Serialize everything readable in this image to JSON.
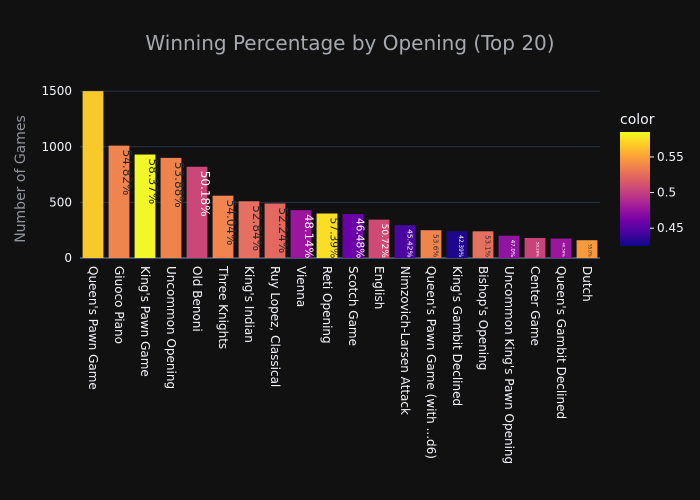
{
  "chart_data": {
    "type": "bar",
    "title": "Winning Percentage by Opening (Top 20)",
    "ylabel": "Number of Games",
    "xlabel": "",
    "ylim": [
      0,
      1600
    ],
    "yticks": [
      0,
      500,
      1000,
      1500
    ],
    "grid": true,
    "categories": [
      "Queen's Pawn Game",
      "Giuoco Piano",
      "King's Pawn Game",
      "Uncommon Opening",
      "Old Benoni",
      "Three Knights",
      "King's Indian",
      "Ruy Lopez, Classical",
      "Vienna",
      "Reti Opening",
      "Scotch Game",
      "English",
      "Nimzovich-Larsen Attack",
      "Queen's Pawn Game (with ...d6)",
      "King's Gambit Declined",
      "Bishop's Opening",
      "Uncommon King's Pawn Opening",
      "Center Game",
      "Queen's Gambit Declined",
      "Dutch"
    ],
    "values": [
      1500,
      1010,
      930,
      900,
      820,
      560,
      510,
      490,
      430,
      400,
      395,
      345,
      295,
      250,
      240,
      240,
      200,
      180,
      175,
      160
    ],
    "bar_labels": [
      "",
      "54.82%",
      "58.37%",
      "53.88%",
      "50.18%",
      "54.04%",
      "52.84%",
      "52.24%",
      "48.14%",
      "57.39%",
      "46.48%",
      "50.72%",
      "45.42%",
      "53.6%",
      "42.39%",
      "53.1%",
      "47.0%",
      "50.28%",
      "46.58%",
      "55.0%"
    ],
    "bar_colors": [
      "#f8c92a",
      "#f0844e",
      "#f2f72a",
      "#ee844c",
      "#cb4778",
      "#f28450",
      "#e57061",
      "#e3685f",
      "#9c169d",
      "#fadd25",
      "#6b00a8",
      "#cf4b73",
      "#4b05a0",
      "#f0844e",
      "#1e068f",
      "#e4715e",
      "#9114a0",
      "#c7437a",
      "#9c169d",
      "#f79a3d"
    ],
    "colorbar": {
      "title": "color",
      "range": [
        0.425,
        0.585
      ],
      "ticks": [
        "0.45",
        "0.5",
        "0.55"
      ],
      "tick_values": [
        0.45,
        0.5,
        0.55
      ],
      "gradient": [
        "#0d0887",
        "#46039f",
        "#7201a8",
        "#9c179e",
        "#bd3786",
        "#d8576b",
        "#ed7953",
        "#fb9f3a",
        "#fdca26",
        "#f0f921"
      ]
    },
    "colors": {
      "background": "#111111",
      "grid": "#283442",
      "text": "#f2f5fa",
      "title": "#a6a9ae",
      "ylabel": "#8f949a"
    }
  }
}
